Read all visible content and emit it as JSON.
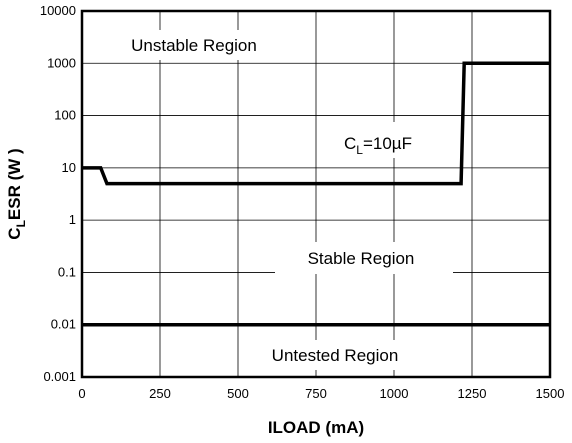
{
  "chart_data": {
    "type": "line",
    "x_scale": "linear",
    "y_scale": "log",
    "xlim": [
      0,
      1500
    ],
    "ylim": [
      0.001,
      10000
    ],
    "x_ticks": [
      "0",
      "250",
      "500",
      "750",
      "1000",
      "1250",
      "1500"
    ],
    "y_ticks": [
      "0.001",
      "0.01",
      "0.1",
      "1",
      "10",
      "100",
      "1000",
      "10000"
    ],
    "xlabel": "ILOAD (mA)",
    "ylabel": {
      "main": "C",
      "sub": "L",
      "rest": "ESR (W )"
    },
    "grid": true,
    "series": [
      {
        "name": "",
        "x": [
          0,
          60,
          80,
          1215,
          1225,
          1500
        ],
        "y": [
          10,
          10,
          5,
          5,
          1000,
          1000
        ]
      },
      {
        "name": "",
        "x": [
          0,
          1500
        ],
        "y": [
          0.01,
          0.01
        ]
      }
    ],
    "annotations": {
      "unstable": "Unstable Region",
      "stable": "Stable Region",
      "untested": "Untested Region",
      "cl_main": "C",
      "cl_sub": "L",
      "cl_rest": "=10µF"
    }
  }
}
